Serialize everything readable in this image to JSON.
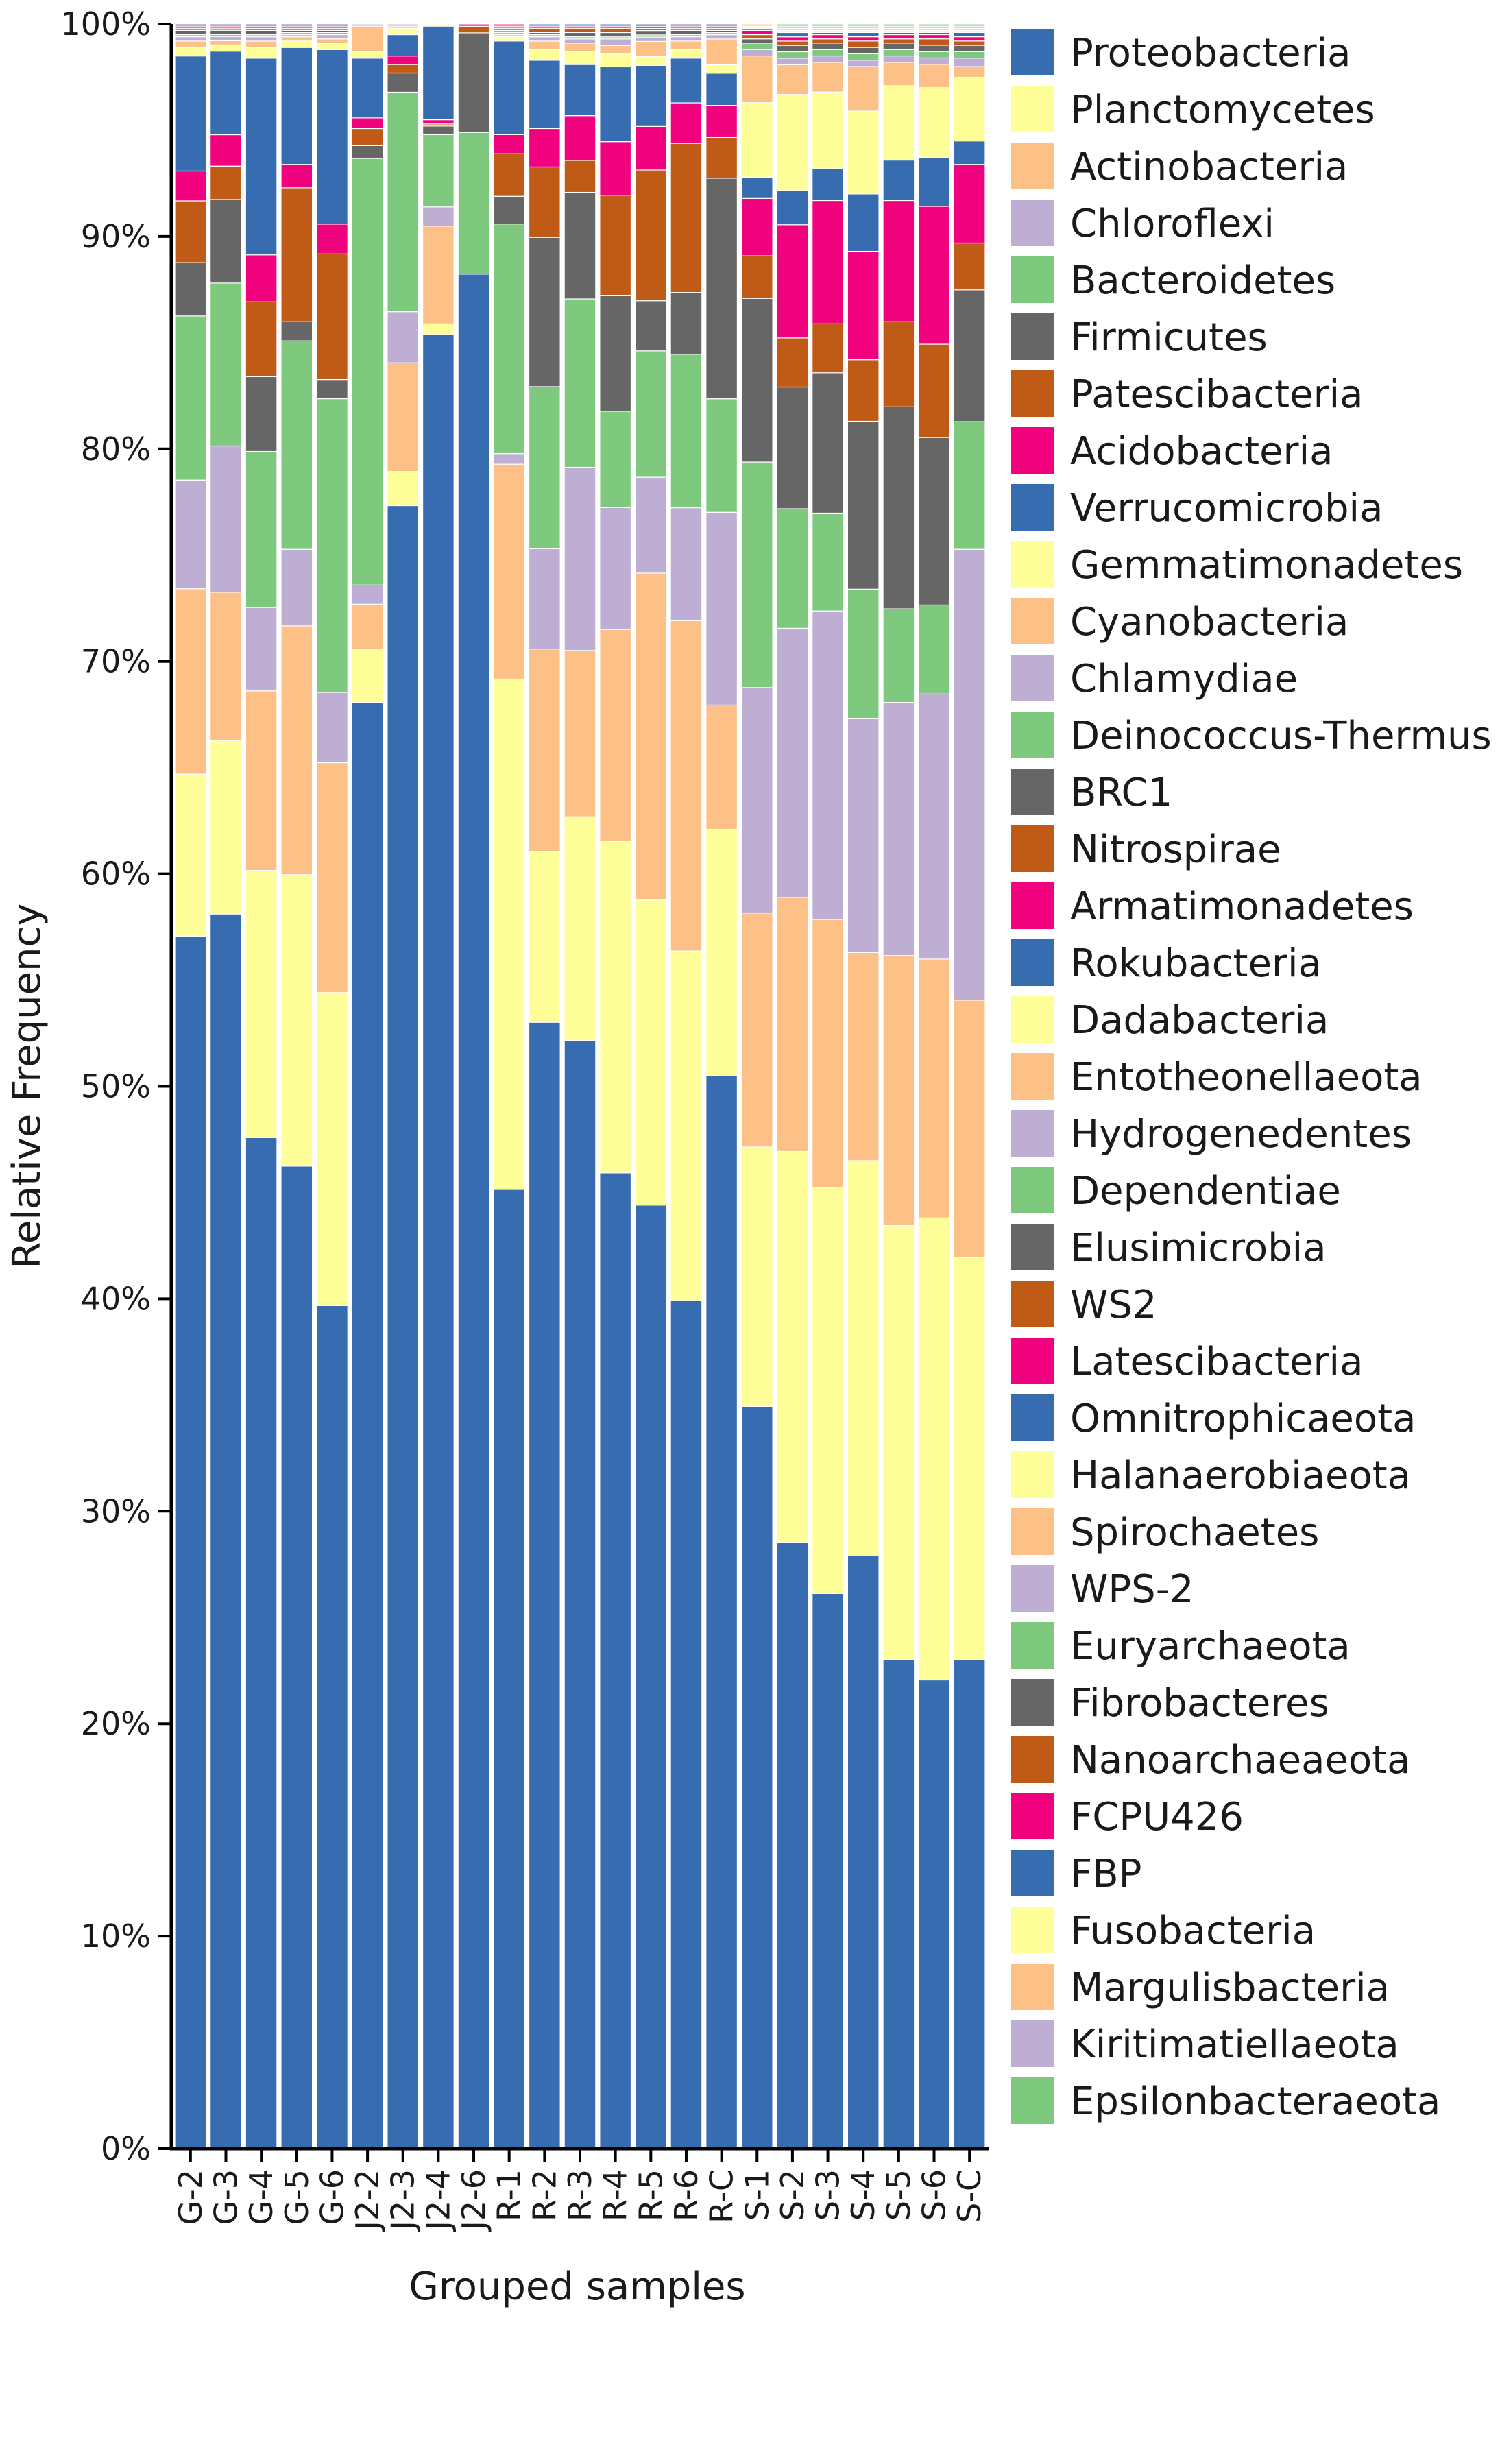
{
  "chart_data": {
    "type": "bar",
    "stacked": true,
    "xlabel": "Grouped samples",
    "ylabel": "Relative Frequency",
    "ylim": [
      0,
      100
    ],
    "yticks": [
      "0%",
      "10%",
      "20%",
      "30%",
      "40%",
      "50%",
      "60%",
      "70%",
      "80%",
      "90%",
      "100%"
    ],
    "grid": false,
    "legend_position": "right",
    "categories": [
      "G-2",
      "G-3",
      "G-4",
      "G-5",
      "G-6",
      "J2-2",
      "J2-3",
      "J2-4",
      "J2-6",
      "R-1",
      "R-2",
      "R-3",
      "R-4",
      "R-5",
      "R-6",
      "R-C",
      "S-1",
      "S-2",
      "S-3",
      "S-4",
      "S-5",
      "S-6",
      "S-C"
    ],
    "series": [
      {
        "name": "Proteobacteria",
        "color": "#386cb0",
        "values": [
          56.9,
          59.1,
          47.3,
          46.2,
          39.6,
          67.8,
          77.1,
          85.3,
          84.7,
          45.1,
          52.8,
          52.0,
          45.6,
          43.3,
          39.8,
          50.1,
          34.9,
          28.4,
          26.1,
          27.9,
          23.0,
          22.1,
          23.0
        ]
      },
      {
        "name": "Planctomycetes",
        "color": "#ffff99",
        "values": [
          7.6,
          8.3,
          12.5,
          13.7,
          14.7,
          2.5,
          1.6,
          0.5,
          0.0,
          24.0,
          8.0,
          10.5,
          15.5,
          14.0,
          16.4,
          11.5,
          12.2,
          18.3,
          19.1,
          18.6,
          20.4,
          21.8,
          18.9
        ]
      },
      {
        "name": "Actinobacteria",
        "color": "#fdc086",
        "values": [
          8.7,
          7.1,
          8.4,
          11.7,
          10.8,
          2.1,
          5.1,
          4.6,
          0.0,
          10.1,
          9.5,
          7.8,
          9.9,
          15.0,
          15.5,
          5.8,
          11.0,
          11.9,
          12.6,
          9.8,
          12.7,
          12.2,
          12.1
        ]
      },
      {
        "name": "Chloroflexi",
        "color": "#beaed4",
        "values": [
          5.1,
          7.0,
          3.9,
          3.6,
          3.3,
          0.9,
          2.4,
          0.9,
          0.0,
          0.5,
          4.7,
          8.6,
          5.7,
          4.4,
          5.3,
          9.0,
          10.6,
          12.6,
          14.5,
          11.0,
          11.9,
          12.5,
          21.2
        ]
      },
      {
        "name": "Bacteroidetes",
        "color": "#7fc97f",
        "values": [
          7.7,
          7.8,
          7.3,
          9.8,
          13.8,
          20.0,
          10.3,
          3.4,
          6.4,
          10.8,
          7.6,
          7.9,
          4.5,
          5.8,
          7.2,
          5.3,
          10.6,
          5.6,
          4.6,
          6.1,
          4.4,
          4.2,
          6.0
        ]
      },
      {
        "name": "Firmicutes",
        "color": "#666666",
        "values": [
          2.5,
          4.0,
          3.5,
          0.9,
          0.9,
          0.6,
          0.9,
          0.4,
          4.5,
          1.3,
          7.0,
          5.0,
          5.4,
          2.3,
          2.9,
          10.3,
          7.7,
          5.7,
          6.6,
          7.9,
          9.5,
          7.9,
          6.2
        ]
      },
      {
        "name": "Patescibacteria",
        "color": "#bf5b17",
        "values": [
          2.9,
          1.6,
          3.5,
          6.3,
          5.9,
          0.8,
          0.4,
          0.1,
          0.3,
          2.0,
          3.3,
          1.5,
          4.7,
          6.0,
          7.0,
          1.9,
          2.0,
          2.3,
          2.3,
          2.9,
          4.0,
          4.4,
          2.2
        ]
      },
      {
        "name": "Acidobacteria",
        "color": "#f0027f",
        "values": [
          1.4,
          1.5,
          2.2,
          1.1,
          1.4,
          0.5,
          0.4,
          0.2,
          0.1,
          0.9,
          1.8,
          2.1,
          2.5,
          2.0,
          1.9,
          1.5,
          2.7,
          5.3,
          5.8,
          5.1,
          5.7,
          6.5,
          3.7
        ]
      },
      {
        "name": "Verrucomicrobia",
        "color": "#386cb0",
        "values": [
          5.4,
          4.0,
          9.2,
          5.5,
          8.2,
          2.8,
          1.0,
          4.4,
          0.0,
          4.4,
          3.2,
          2.4,
          3.5,
          2.8,
          2.1,
          1.5,
          1.0,
          1.6,
          1.5,
          2.7,
          1.9,
          2.3,
          1.1
        ]
      },
      {
        "name": "Gemmatimonadetes",
        "color": "#ffff99",
        "values": [
          0.4,
          0.3,
          0.5,
          0.3,
          0.3,
          0.3,
          0.3,
          0.1,
          0.0,
          0.2,
          0.5,
          0.6,
          0.6,
          0.4,
          0.4,
          0.4,
          3.5,
          4.5,
          3.6,
          3.9,
          3.5,
          3.3,
          3.0
        ]
      },
      {
        "name": "Cyanobacteria",
        "color": "#fdc086",
        "values": [
          0.3,
          0.2,
          0.3,
          0.2,
          0.2,
          1.2,
          0.1,
          0.0,
          0.0,
          0.1,
          0.4,
          0.4,
          0.4,
          0.7,
          0.4,
          1.2,
          2.2,
          1.4,
          1.4,
          2.1,
          1.1,
          1.1,
          0.5
        ]
      },
      {
        "name": "Chlamydiae",
        "color": "#beaed4",
        "values": [
          0.2,
          0.2,
          0.2,
          0.1,
          0.2,
          0.1,
          0.1,
          0.0,
          0.0,
          0.1,
          0.2,
          0.2,
          0.3,
          0.2,
          0.2,
          0.2,
          0.3,
          0.3,
          0.3,
          0.3,
          0.3,
          0.3,
          0.4
        ]
      },
      {
        "name": "Deinococcus-Thermus",
        "color": "#7fc97f",
        "values": [
          0.1,
          0.1,
          0.1,
          0.1,
          0.1,
          0.0,
          0.0,
          0.0,
          0.0,
          0.1,
          0.1,
          0.1,
          0.1,
          0.1,
          0.1,
          0.1,
          0.3,
          0.3,
          0.3,
          0.3,
          0.3,
          0.3,
          0.3
        ]
      },
      {
        "name": "BRC1",
        "color": "#666666",
        "values": [
          0.2,
          0.2,
          0.2,
          0.1,
          0.1,
          0.0,
          0.0,
          0.0,
          0.0,
          0.1,
          0.1,
          0.2,
          0.2,
          0.2,
          0.2,
          0.1,
          0.2,
          0.3,
          0.3,
          0.3,
          0.3,
          0.3,
          0.3
        ]
      },
      {
        "name": "Nitrospirae",
        "color": "#bf5b17",
        "values": [
          0.1,
          0.1,
          0.1,
          0.1,
          0.1,
          0.0,
          0.0,
          0.0,
          0.0,
          0.1,
          0.2,
          0.2,
          0.2,
          0.1,
          0.1,
          0.1,
          0.2,
          0.2,
          0.2,
          0.3,
          0.2,
          0.3,
          0.2
        ]
      },
      {
        "name": "Armatimonadetes",
        "color": "#f0027f",
        "values": [
          0.1,
          0.1,
          0.1,
          0.1,
          0.1,
          0.0,
          0.0,
          0.0,
          0.0,
          0.1,
          0.1,
          0.1,
          0.1,
          0.1,
          0.1,
          0.1,
          0.2,
          0.2,
          0.2,
          0.2,
          0.2,
          0.2,
          0.2
        ]
      },
      {
        "name": "Rokubacteria",
        "color": "#386cb0",
        "values": [
          0.1,
          0.1,
          0.1,
          0.1,
          0.1,
          0.0,
          0.0,
          0.0,
          0.0,
          0.0,
          0.1,
          0.1,
          0.1,
          0.1,
          0.1,
          0.1,
          0.1,
          0.2,
          0.1,
          0.2,
          0.1,
          0.1,
          0.2
        ]
      },
      {
        "name": "Dadabacteria",
        "color": "#ffff99",
        "values": [
          0.0,
          0.0,
          0.0,
          0.0,
          0.0,
          0.0,
          0.0,
          0.0,
          0.0,
          0.0,
          0.0,
          0.0,
          0.0,
          0.0,
          0.0,
          0.0,
          0.1,
          0.1,
          0.1,
          0.1,
          0.1,
          0.1,
          0.1
        ]
      },
      {
        "name": "Entotheonellaeota",
        "color": "#fdc086",
        "values": [
          0.0,
          0.0,
          0.0,
          0.0,
          0.0,
          0.0,
          0.0,
          0.0,
          0.0,
          0.0,
          0.0,
          0.0,
          0.0,
          0.0,
          0.0,
          0.0,
          0.1,
          0.1,
          0.1,
          0.1,
          0.1,
          0.1,
          0.1
        ]
      },
      {
        "name": "Hydrogenedentes",
        "color": "#beaed4",
        "values": [
          0.0,
          0.0,
          0.0,
          0.0,
          0.0,
          0.0,
          0.0,
          0.0,
          0.0,
          0.0,
          0.0,
          0.0,
          0.0,
          0.0,
          0.0,
          0.0,
          0.0,
          0.1,
          0.1,
          0.1,
          0.1,
          0.1,
          0.1
        ]
      },
      {
        "name": "Dependentiae",
        "color": "#7fc97f",
        "values": [
          0.0,
          0.0,
          0.0,
          0.0,
          0.0,
          0.0,
          0.0,
          0.0,
          0.0,
          0.0,
          0.0,
          0.0,
          0.0,
          0.0,
          0.0,
          0.0,
          0.0,
          0.1,
          0.1,
          0.1,
          0.1,
          0.1,
          0.1
        ]
      },
      {
        "name": "Elusimicrobia",
        "color": "#666666",
        "values": [
          0,
          0,
          0,
          0,
          0,
          0,
          0,
          0,
          0,
          0,
          0,
          0,
          0,
          0,
          0,
          0,
          0,
          0,
          0,
          0,
          0,
          0,
          0
        ]
      },
      {
        "name": "WS2",
        "color": "#bf5b17",
        "values": [
          0,
          0,
          0,
          0,
          0,
          0,
          0,
          0,
          0,
          0,
          0,
          0,
          0,
          0,
          0,
          0,
          0,
          0,
          0,
          0,
          0,
          0,
          0
        ]
      },
      {
        "name": "Latescibacteria",
        "color": "#f0027f",
        "values": [
          0,
          0,
          0,
          0,
          0,
          0,
          0,
          0,
          0,
          0,
          0,
          0,
          0,
          0,
          0,
          0,
          0,
          0,
          0,
          0,
          0,
          0,
          0
        ]
      },
      {
        "name": "Omnitrophicaeota",
        "color": "#386cb0",
        "values": [
          0,
          0,
          0,
          0,
          0,
          0,
          0,
          0,
          0,
          0,
          0,
          0,
          0,
          0,
          0,
          0,
          0,
          0,
          0,
          0,
          0,
          0,
          0
        ]
      },
      {
        "name": "Halanaerobiaeota",
        "color": "#ffff99",
        "values": [
          0,
          0,
          0,
          0,
          0,
          0,
          0,
          0,
          0,
          0,
          0,
          0,
          0,
          0,
          0,
          0,
          0,
          0,
          0,
          0,
          0,
          0,
          0
        ]
      },
      {
        "name": "Spirochaetes",
        "color": "#fdc086",
        "values": [
          0,
          0,
          0,
          0,
          0,
          0,
          0,
          0,
          0,
          0,
          0,
          0,
          0,
          0,
          0,
          0,
          0,
          0,
          0,
          0,
          0,
          0,
          0
        ]
      },
      {
        "name": "WPS-2",
        "color": "#beaed4",
        "values": [
          0,
          0,
          0,
          0,
          0,
          0,
          0,
          0,
          0,
          0,
          0,
          0,
          0,
          0,
          0,
          0,
          0,
          0,
          0,
          0,
          0,
          0,
          0
        ]
      },
      {
        "name": "Euryarchaeota",
        "color": "#7fc97f",
        "values": [
          0,
          0,
          0,
          0,
          0,
          0,
          0,
          0,
          0,
          0,
          0,
          0,
          0,
          0,
          0,
          0,
          0,
          0,
          0,
          0,
          0,
          0,
          0
        ]
      },
      {
        "name": "Fibrobacteres",
        "color": "#666666",
        "values": [
          0,
          0,
          0,
          0,
          0,
          0,
          0,
          0,
          0,
          0,
          0,
          0,
          0,
          0,
          0,
          0,
          0,
          0,
          0,
          0,
          0,
          0,
          0
        ]
      },
      {
        "name": "Nanoarchaeaeota",
        "color": "#bf5b17",
        "values": [
          0,
          0,
          0,
          0,
          0,
          0,
          0,
          0,
          0,
          0,
          0,
          0,
          0,
          0,
          0,
          0,
          0,
          0,
          0,
          0,
          0,
          0,
          0
        ]
      },
      {
        "name": "FCPU426",
        "color": "#f0027f",
        "values": [
          0,
          0,
          0,
          0,
          0,
          0,
          0,
          0,
          0,
          0,
          0,
          0,
          0,
          0,
          0,
          0,
          0,
          0,
          0,
          0,
          0,
          0,
          0
        ]
      },
      {
        "name": "FBP",
        "color": "#386cb0",
        "values": [
          0,
          0,
          0,
          0,
          0,
          0,
          0,
          0,
          0,
          0,
          0,
          0,
          0,
          0,
          0,
          0,
          0,
          0,
          0,
          0,
          0,
          0,
          0
        ]
      },
      {
        "name": "Fusobacteria",
        "color": "#ffff99",
        "values": [
          0,
          0,
          0,
          0,
          0,
          0,
          0,
          0,
          0,
          0,
          0,
          0,
          0,
          0,
          0,
          0,
          0,
          0,
          0,
          0,
          0,
          0,
          0
        ]
      },
      {
        "name": "Margulisbacteria",
        "color": "#fdc086",
        "values": [
          0,
          0,
          0,
          0,
          0,
          0,
          0,
          0,
          0,
          0,
          0,
          0,
          0,
          0,
          0,
          0,
          0,
          0,
          0,
          0,
          0,
          0,
          0
        ]
      },
      {
        "name": "Kiritimatiellaeota",
        "color": "#beaed4",
        "values": [
          0,
          0,
          0,
          0,
          0,
          0,
          0,
          0,
          0,
          0,
          0,
          0,
          0,
          0,
          0,
          0,
          0,
          0,
          0,
          0,
          0,
          0,
          0
        ]
      },
      {
        "name": "Epsilonbacteraeota",
        "color": "#7fc97f",
        "values": [
          0,
          0,
          0,
          0,
          0,
          0,
          0,
          0,
          0,
          0,
          0,
          0,
          0,
          0,
          0,
          0,
          0,
          0,
          0,
          0,
          0,
          0,
          0
        ]
      }
    ]
  }
}
